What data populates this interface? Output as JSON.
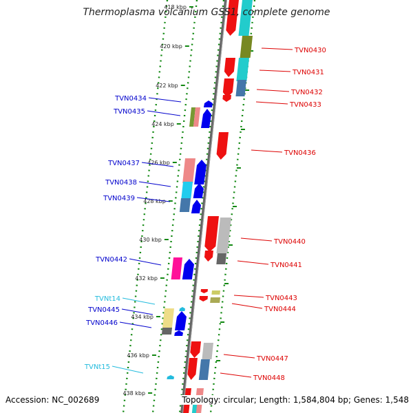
{
  "title": "Thermoplasma volcanium GSS1, complete genome",
  "footer": {
    "accession": "Accession: NC_002689",
    "summary": "Topology: circular; Length: 1,584,804 bp; Genes: 1,548"
  },
  "axis": {
    "ticks": [
      "418 kbp",
      "420 kbp",
      "422 kbp",
      "424 kbp",
      "426 kbp",
      "428 kbp",
      "430 kbp",
      "432 kbp",
      "434 kbp",
      "436 kbp",
      "438 kbp"
    ]
  },
  "colors": {
    "forward_label": "#0000cc",
    "reverse_label": "#dd0000",
    "trna_label": "#22bbdd",
    "track_dots": "#118811",
    "backbone": "#888888"
  },
  "genes": [
    {
      "name": "TVN0430",
      "strand": "reverse"
    },
    {
      "name": "TVN0431",
      "strand": "reverse"
    },
    {
      "name": "TVN0432",
      "strand": "reverse"
    },
    {
      "name": "TVN0433",
      "strand": "reverse"
    },
    {
      "name": "TVN0434",
      "strand": "forward"
    },
    {
      "name": "TVN0435",
      "strand": "forward"
    },
    {
      "name": "TVN0436",
      "strand": "reverse"
    },
    {
      "name": "TVN0437",
      "strand": "forward"
    },
    {
      "name": "TVN0438",
      "strand": "forward"
    },
    {
      "name": "TVN0439",
      "strand": "forward"
    },
    {
      "name": "TVN0440",
      "strand": "reverse"
    },
    {
      "name": "TVN0441",
      "strand": "reverse"
    },
    {
      "name": "TVN0442",
      "strand": "forward"
    },
    {
      "name": "TVN0443",
      "strand": "reverse"
    },
    {
      "name": "TVN0444",
      "strand": "reverse"
    },
    {
      "name": "TVNt14",
      "strand": "forward"
    },
    {
      "name": "TVN0445",
      "strand": "forward"
    },
    {
      "name": "TVN0446",
      "strand": "forward"
    },
    {
      "name": "TVN0447",
      "strand": "reverse"
    },
    {
      "name": "TVN0448",
      "strand": "reverse"
    },
    {
      "name": "TVNt15",
      "strand": "forward"
    }
  ]
}
